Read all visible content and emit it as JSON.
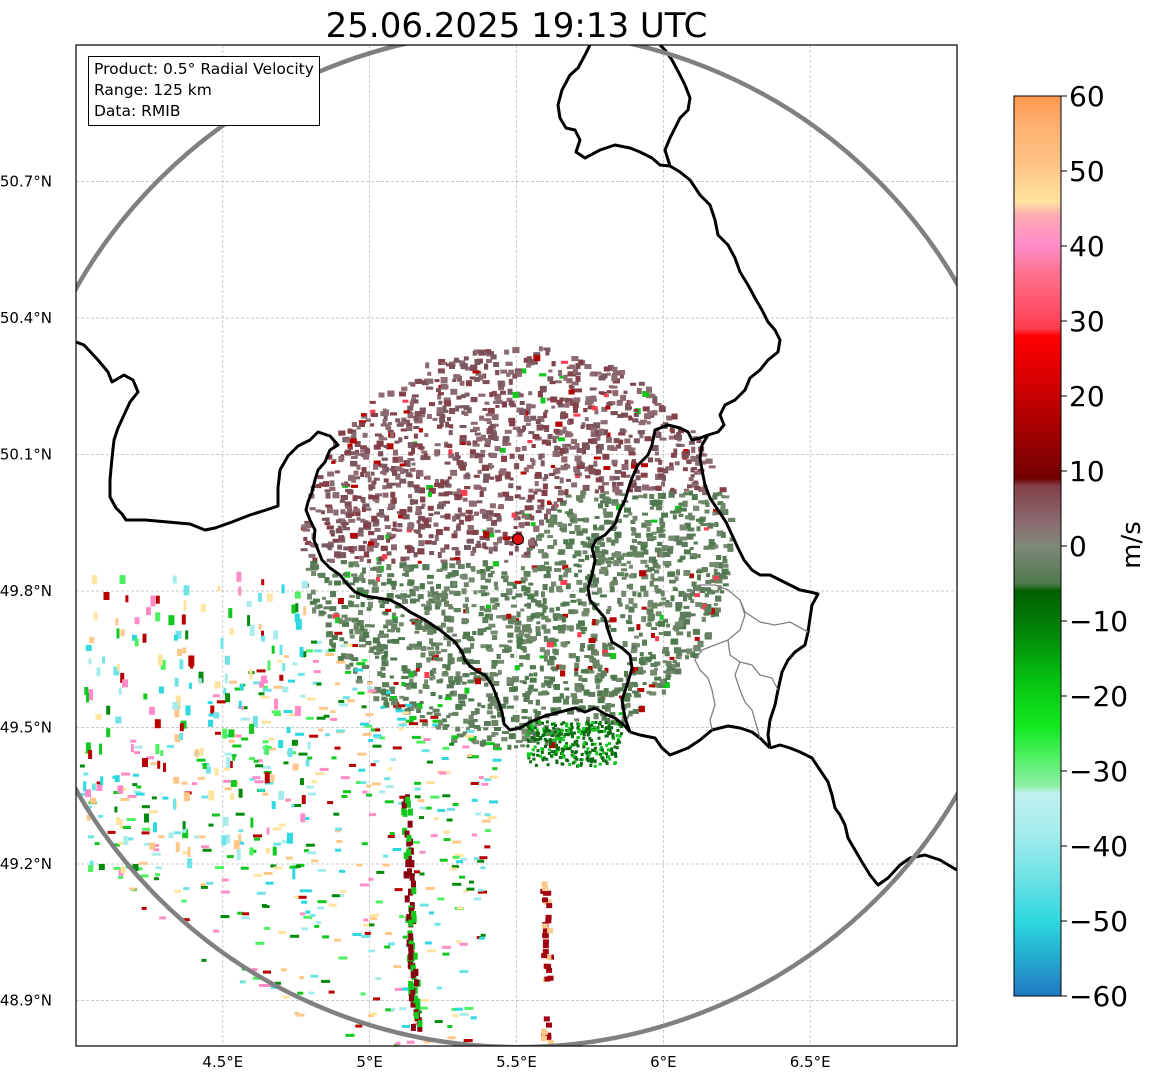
{
  "title": "25.06.2025 19:13 UTC",
  "info": {
    "product": "Product: 0.5° Radial Velocity",
    "range": "Range: 125 km",
    "data": "Data: RMIB"
  },
  "map_axes": {
    "lon_range": [
      4.0,
      7.0
    ],
    "lat_range": [
      48.8,
      51.0
    ],
    "lon_ticks": [
      {
        "value": 4.5,
        "label": "4.5°E"
      },
      {
        "value": 5.0,
        "label": "5°E"
      },
      {
        "value": 5.5,
        "label": "5.5°E"
      },
      {
        "value": 6.0,
        "label": "6°E"
      },
      {
        "value": 6.5,
        "label": "6.5°E"
      }
    ],
    "lat_ticks": [
      {
        "value": 50.7,
        "label": "50.7°N"
      },
      {
        "value": 50.4,
        "label": "50.4°N"
      },
      {
        "value": 50.1,
        "label": "50.1°N"
      },
      {
        "value": 49.8,
        "label": "49.8°N"
      },
      {
        "value": 49.5,
        "label": "49.5°N"
      },
      {
        "value": 49.2,
        "label": "49.2°N"
      },
      {
        "value": 48.9,
        "label": "48.9°N"
      }
    ],
    "grid": true
  },
  "radar_site": {
    "lon": 5.505,
    "lat": 49.914,
    "color": "#e01010"
  },
  "range_ring_color": "#808080",
  "colorbar": {
    "label": "m/s",
    "min": -60,
    "max": 60,
    "ticks": [
      {
        "value": 60,
        "label": "60"
      },
      {
        "value": 50,
        "label": "50"
      },
      {
        "value": 40,
        "label": "40"
      },
      {
        "value": 30,
        "label": "30"
      },
      {
        "value": 20,
        "label": "20"
      },
      {
        "value": 10,
        "label": "10"
      },
      {
        "value": 0,
        "label": "0"
      },
      {
        "value": -10,
        "label": "−10"
      },
      {
        "value": -20,
        "label": "−20"
      },
      {
        "value": -30,
        "label": "−30"
      },
      {
        "value": -40,
        "label": "−40"
      },
      {
        "value": -50,
        "label": "−50"
      },
      {
        "value": -60,
        "label": "−60"
      }
    ],
    "stops": [
      {
        "v": -60,
        "c": "#1f78c0"
      },
      {
        "v": -54,
        "c": "#25b4d2"
      },
      {
        "v": -50,
        "c": "#2ed8df"
      },
      {
        "v": -44,
        "c": "#6fe3e6"
      },
      {
        "v": -38,
        "c": "#a6ecec"
      },
      {
        "v": -33,
        "c": "#c0f0f0"
      },
      {
        "v": -32,
        "c": "#8ef0a8"
      },
      {
        "v": -28,
        "c": "#4cf060"
      },
      {
        "v": -24,
        "c": "#12e81e"
      },
      {
        "v": -18,
        "c": "#06c410"
      },
      {
        "v": -12,
        "c": "#038a0a"
      },
      {
        "v": -6,
        "c": "#005f00"
      },
      {
        "v": -5,
        "c": "#4e7a4e"
      },
      {
        "v": 0,
        "c": "#7f8878"
      },
      {
        "v": 3,
        "c": "#8a6c72"
      },
      {
        "v": 8,
        "c": "#844048"
      },
      {
        "v": 9,
        "c": "#700000"
      },
      {
        "v": 18,
        "c": "#b80000"
      },
      {
        "v": 28,
        "c": "#ff0000"
      },
      {
        "v": 29,
        "c": "#ff3c50"
      },
      {
        "v": 36,
        "c": "#ff6f8c"
      },
      {
        "v": 40,
        "c": "#ff8cc8"
      },
      {
        "v": 44,
        "c": "#ffaab4"
      },
      {
        "v": 46,
        "c": "#ffe4a0"
      },
      {
        "v": 50,
        "c": "#ffc888"
      },
      {
        "v": 56,
        "c": "#ffb070"
      },
      {
        "v": 60,
        "c": "#ff9a50"
      }
    ]
  }
}
